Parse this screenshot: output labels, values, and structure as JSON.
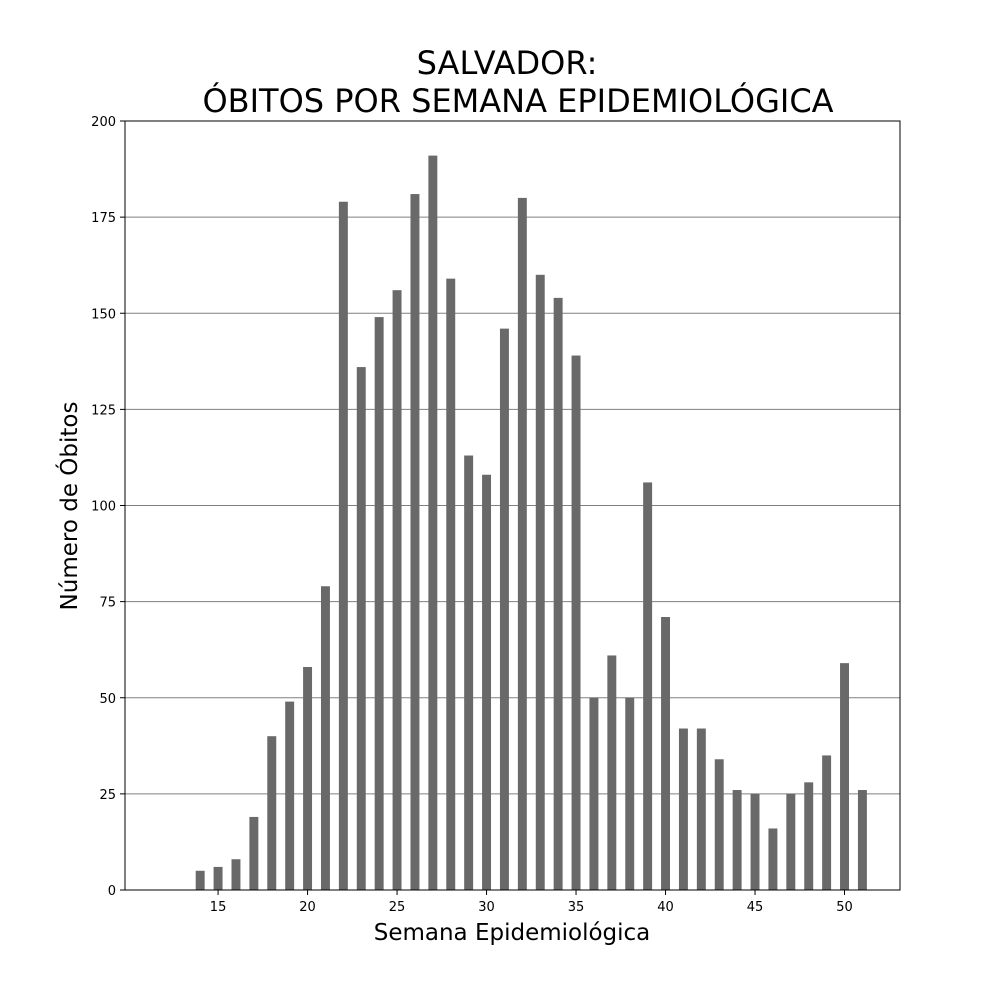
{
  "chart_data": {
    "type": "bar",
    "title_line1": "SALVADOR:",
    "title_line2": "ÓBITOS POR SEMANA EPIDEMIOLÓGICA",
    "xlabel": "Semana Epidemiológica",
    "ylabel": "Número de Óbitos",
    "x": [
      14,
      15,
      16,
      17,
      18,
      19,
      20,
      21,
      22,
      23,
      24,
      25,
      26,
      27,
      28,
      29,
      30,
      31,
      32,
      33,
      34,
      35,
      36,
      37,
      38,
      39,
      40,
      41,
      42,
      43,
      44,
      45,
      46,
      47,
      48,
      49,
      50,
      51
    ],
    "values": [
      5,
      6,
      8,
      19,
      40,
      49,
      58,
      79,
      179,
      136,
      149,
      156,
      181,
      191,
      159,
      113,
      108,
      146,
      180,
      160,
      154,
      139,
      50,
      61,
      50,
      106,
      71,
      42,
      42,
      34,
      26,
      25,
      16,
      25,
      28,
      35,
      59,
      26
    ],
    "xlim": [
      9.8,
      53.1
    ],
    "ylim": [
      0,
      200
    ],
    "xticks": [
      15,
      20,
      25,
      30,
      35,
      40,
      45,
      50
    ],
    "yticks": [
      0,
      25,
      50,
      75,
      100,
      125,
      150,
      175,
      200
    ],
    "grid": "horizontal",
    "bar_color": "#696969",
    "grid_color": "#808080"
  }
}
